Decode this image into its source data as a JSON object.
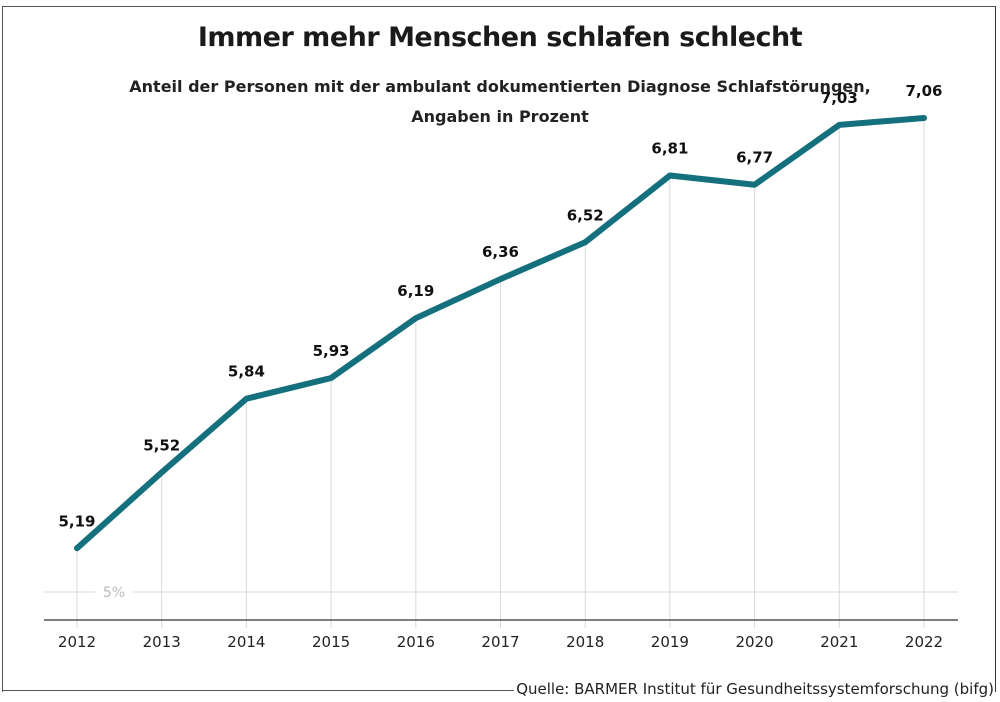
{
  "header": {
    "title": "Immer mehr Menschen schlafen schlecht",
    "subtitle_line1": "Anteil der Personen mit der ambulant dokumentierten Diagnose Schlafstörungen,",
    "subtitle_line2": "Angaben in Prozent"
  },
  "footer": {
    "source": "Quelle: BARMER Institut für Gesundheitssystemforschung (bifg)"
  },
  "colors": {
    "line": "#15707e",
    "grid": "#d9d9d9",
    "axis": "#333333"
  },
  "chart_data": {
    "type": "line",
    "title": "Immer mehr Menschen schlafen schlecht",
    "subtitle": "Anteil der Personen mit der ambulant dokumentierten Diagnose Schlafstörungen, Angaben in Prozent",
    "xlabel": "",
    "ylabel": "",
    "x": [
      "2012",
      "2013",
      "2014",
      "2015",
      "2016",
      "2017",
      "2018",
      "2019",
      "2020",
      "2021",
      "2022"
    ],
    "series": [
      {
        "name": "Schlafstörungen",
        "values": [
          5.19,
          5.52,
          5.84,
          5.93,
          6.19,
          6.36,
          6.52,
          6.81,
          6.77,
          7.03,
          7.06
        ],
        "labels": [
          "5,19",
          "5,52",
          "5,84",
          "5,93",
          "6,19",
          "6,36",
          "6,52",
          "6,81",
          "6,77",
          "7,03",
          "7,06"
        ]
      }
    ],
    "y_gridlines": [
      {
        "value": 5,
        "label": "5%"
      }
    ],
    "ylim": [
      4.9,
      7.06
    ],
    "grid": "vertical lines at each year",
    "legend": "none"
  }
}
